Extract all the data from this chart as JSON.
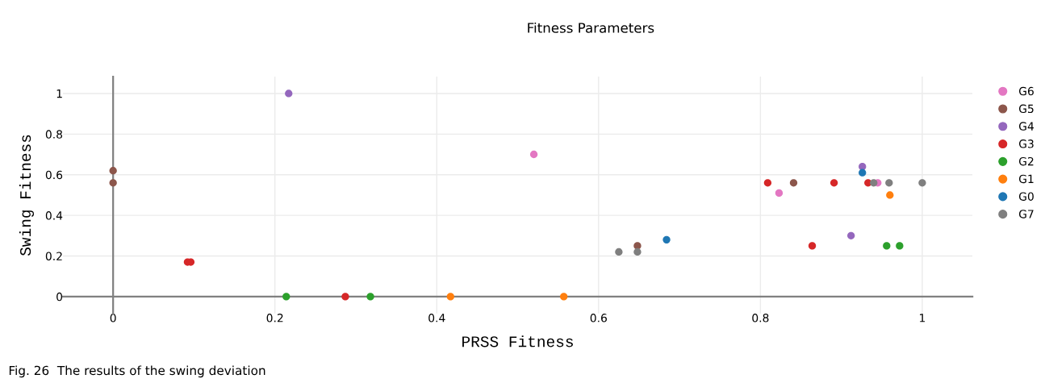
{
  "chart_data": {
    "type": "scatter",
    "title": "Fitness Parameters",
    "xlabel": "PRSS Fitness",
    "ylabel": "Swing Fitness",
    "annotations": [
      "Fig. 26  The results of the swing deviation"
    ],
    "series": [
      {
        "name": "G6",
        "color": "#e377c2",
        "x": [
          0.52,
          0.823,
          0.945
        ],
        "values": [
          0.7,
          0.51,
          0.56
        ]
      },
      {
        "name": "G5",
        "color": "#8c564b",
        "x": [
          0,
          0,
          0.648,
          0.841
        ],
        "values": [
          0.62,
          0.56,
          0.25,
          0.56
        ]
      },
      {
        "name": "G4",
        "color": "#9467bd",
        "x": [
          0.217,
          0.912,
          0.926
        ],
        "values": [
          1.0,
          0.3,
          0.64
        ]
      },
      {
        "name": "G3",
        "color": "#d62728",
        "x": [
          0.092,
          0.096,
          0.287,
          0.809,
          0.864,
          0.891,
          0.933
        ],
        "values": [
          0.17,
          0.17,
          0,
          0.56,
          0.25,
          0.56,
          0.56
        ]
      },
      {
        "name": "G2",
        "color": "#2ca02c",
        "x": [
          0.214,
          0.318,
          0.956,
          0.972
        ],
        "values": [
          0,
          0,
          0.25,
          0.25
        ]
      },
      {
        "name": "G1",
        "color": "#ff7f0e",
        "x": [
          0.417,
          0.557,
          0.96
        ],
        "values": [
          0,
          0,
          0.5
        ]
      },
      {
        "name": "G0",
        "color": "#1f77b4",
        "x": [
          0.684,
          0.926
        ],
        "values": [
          0.28,
          0.61
        ]
      },
      {
        "name": "G7",
        "color": "#7f7f7f",
        "x": [
          0.625,
          0.648,
          0.94,
          0.959,
          1.0
        ],
        "values": [
          0.22,
          0.22,
          0.56,
          0.56,
          0.56
        ]
      }
    ],
    "xlim": [
      -0.062,
      1.062
    ],
    "ylim": [
      -0.083,
      1.083
    ],
    "xticks": [
      0,
      0.2,
      0.4,
      0.6,
      0.8,
      1
    ],
    "yticks": [
      0,
      0.2,
      0.4,
      0.6,
      0.8,
      1
    ],
    "grid": true,
    "legend": "right",
    "marker": "circle"
  }
}
